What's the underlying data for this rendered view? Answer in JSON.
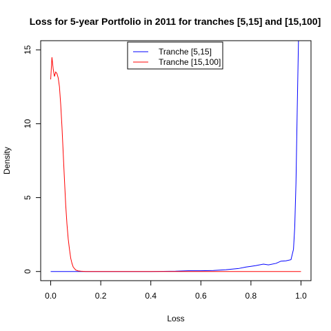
{
  "chart_data": {
    "type": "line",
    "title": "Loss for 5-year Portfolio in 2011 for tranches [5,15] and [15,100]",
    "xlabel": "Loss",
    "ylabel": "Density",
    "xlim": [
      -0.04,
      1.04
    ],
    "ylim": [
      -0.62,
      15.62
    ],
    "x_ticks": [
      0.0,
      0.2,
      0.4,
      0.6,
      0.8,
      1.0
    ],
    "x_tick_labels": [
      "0.0",
      "0.2",
      "0.4",
      "0.6",
      "0.8",
      "1.0"
    ],
    "y_ticks": [
      0,
      5,
      10,
      15
    ],
    "y_tick_labels": [
      "0",
      "5",
      "10",
      "15"
    ],
    "grid": false,
    "legend_position": "top-center",
    "series": [
      {
        "name": "Tranche [5,15]",
        "color": "#0000ff",
        "x": [
          0.0,
          0.1,
          0.2,
          0.3,
          0.4,
          0.5,
          0.55,
          0.6,
          0.65,
          0.7,
          0.75,
          0.78,
          0.8,
          0.82,
          0.85,
          0.87,
          0.9,
          0.92,
          0.94,
          0.96,
          0.97,
          0.975,
          0.98,
          0.985,
          0.99
        ],
        "y": [
          0.0,
          0.0,
          0.0,
          0.0,
          0.0,
          0.02,
          0.05,
          0.05,
          0.07,
          0.12,
          0.2,
          0.3,
          0.35,
          0.4,
          0.5,
          0.45,
          0.55,
          0.7,
          0.72,
          0.8,
          1.5,
          3.0,
          6.0,
          11.0,
          15.62
        ]
      },
      {
        "name": "Tranche [15,100]",
        "color": "#ff0000",
        "x": [
          0.0,
          0.005,
          0.01,
          0.015,
          0.02,
          0.025,
          0.03,
          0.035,
          0.04,
          0.045,
          0.05,
          0.055,
          0.06,
          0.065,
          0.07,
          0.075,
          0.08,
          0.085,
          0.09,
          0.1,
          0.11,
          0.12,
          0.13,
          0.14,
          0.15,
          0.2,
          0.3,
          0.5,
          0.7,
          0.9,
          1.0
        ],
        "y": [
          13.0,
          14.5,
          13.7,
          13.2,
          13.5,
          13.4,
          13.1,
          12.5,
          11.3,
          9.8,
          8.0,
          6.2,
          4.5,
          3.2,
          2.2,
          1.5,
          0.9,
          0.55,
          0.3,
          0.1,
          0.04,
          0.02,
          0.01,
          0.0,
          0.0,
          0.0,
          0.0,
          0.0,
          0.0,
          0.0,
          0.0
        ]
      }
    ]
  }
}
